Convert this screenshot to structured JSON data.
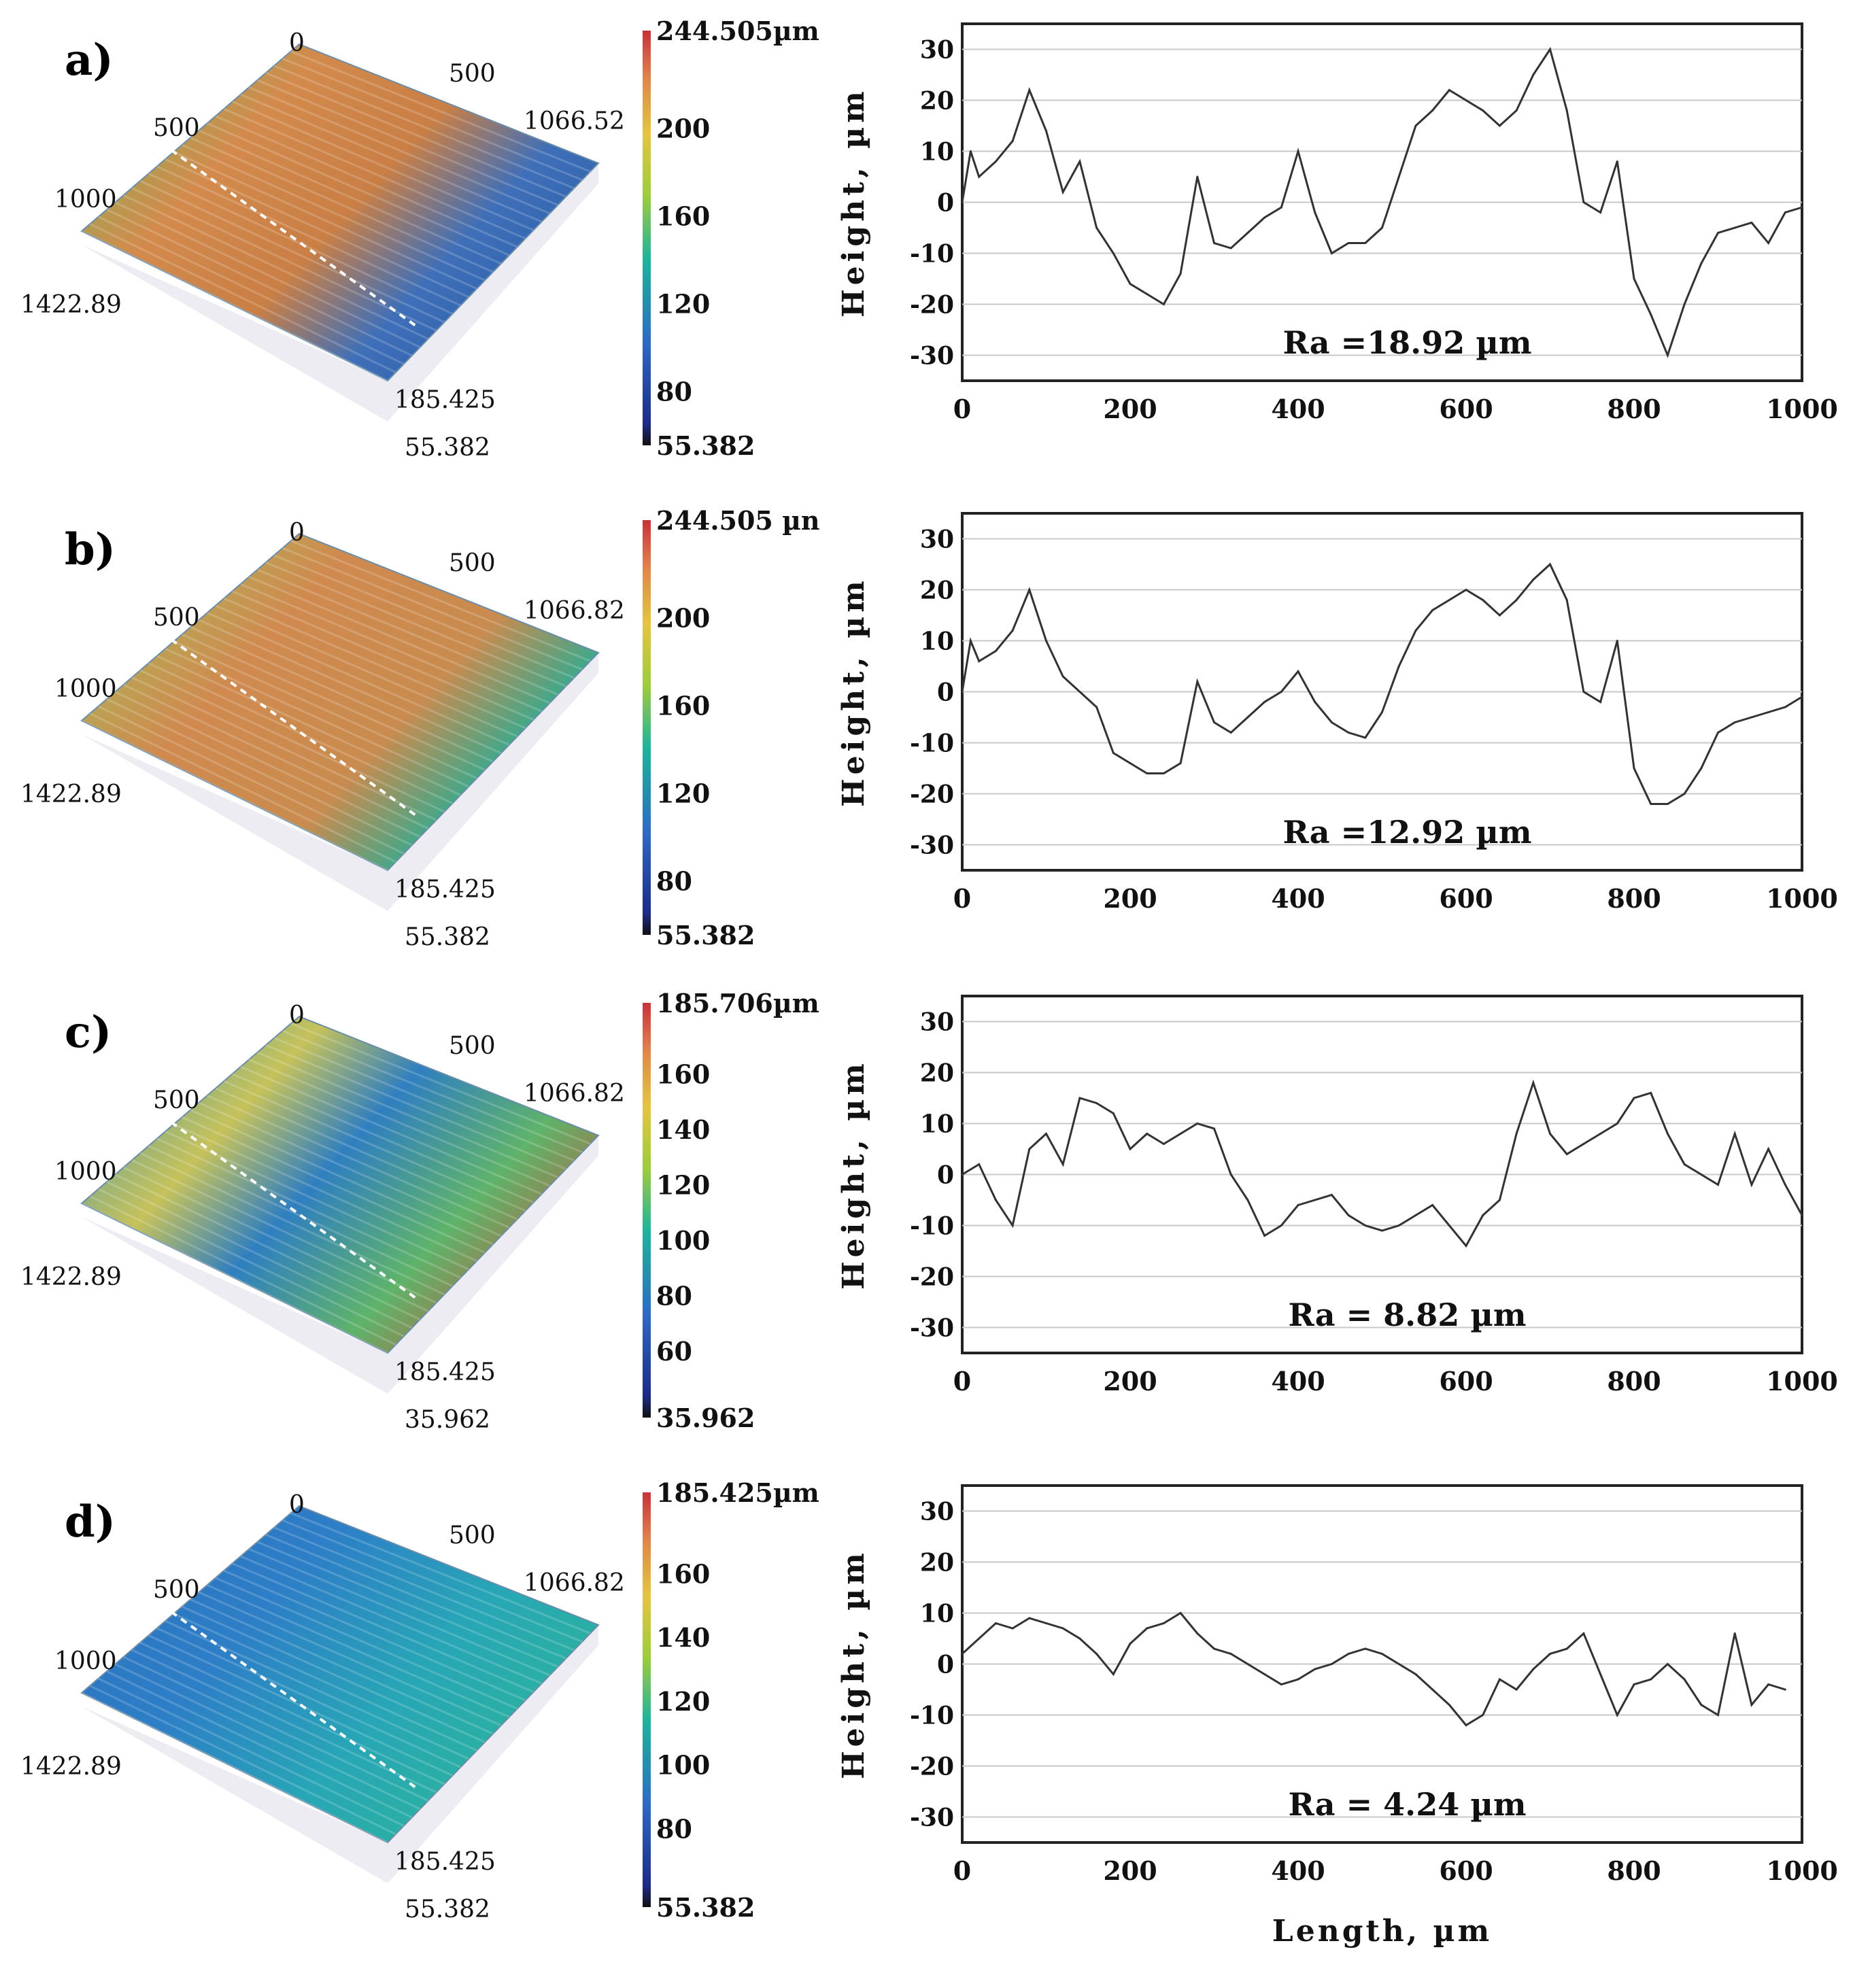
{
  "chart_data": [
    {
      "panel": "a)",
      "type": "line",
      "surface_3d": {
        "axis_labels": [
          "0",
          "500",
          "1066.52",
          "500",
          "1000",
          "1422.89",
          "185.425",
          "55.382"
        ],
        "colorbar": {
          "ticks": [
            "244.505µm",
            "200",
            "160",
            "120",
            "80",
            "55.382"
          ],
          "max": 244.505,
          "min": 55.382
        }
      },
      "profile": {
        "xlabel": "",
        "ylabel": "Height, µm",
        "xlim": [
          0,
          1000
        ],
        "ylim": [
          -35,
          35
        ],
        "xticks": [
          "0",
          "200",
          "400",
          "600",
          "800",
          "1000"
        ],
        "yticks": [
          "30",
          "20",
          "10",
          "0",
          "-10",
          "-20",
          "-30"
        ],
        "annotation": "Ra =18.92 µm",
        "x": [
          0,
          10,
          20,
          40,
          60,
          80,
          100,
          120,
          140,
          160,
          180,
          200,
          220,
          240,
          260,
          280,
          300,
          320,
          340,
          360,
          380,
          400,
          420,
          440,
          460,
          480,
          500,
          520,
          540,
          560,
          580,
          600,
          620,
          640,
          660,
          680,
          700,
          720,
          740,
          760,
          780,
          800,
          820,
          840,
          860,
          880,
          900,
          920,
          940,
          960,
          980,
          1000
        ],
        "y": [
          0,
          10,
          5,
          8,
          12,
          22,
          14,
          2,
          8,
          -5,
          -10,
          -16,
          -18,
          -20,
          -14,
          5,
          -8,
          -9,
          -6,
          -3,
          -1,
          10,
          -2,
          -10,
          -8,
          -8,
          -5,
          5,
          15,
          18,
          22,
          20,
          18,
          15,
          18,
          25,
          30,
          18,
          0,
          -2,
          8,
          -15,
          -22,
          -30,
          -20,
          -12,
          -6,
          -5,
          -4,
          -8,
          -2,
          -1
        ]
      }
    },
    {
      "panel": "b)",
      "type": "line",
      "surface_3d": {
        "axis_labels": [
          "0",
          "500",
          "1066.82",
          "500",
          "1000",
          "1422.89",
          "185.425",
          "55.382"
        ],
        "colorbar": {
          "ticks": [
            "244.505 µn",
            "200",
            "160",
            "120",
            "80",
            "55.382"
          ],
          "max": 244.505,
          "min": 55.382
        }
      },
      "profile": {
        "xlabel": "",
        "ylabel": "Height, µm",
        "xlim": [
          0,
          1000
        ],
        "ylim": [
          -35,
          35
        ],
        "xticks": [
          "0",
          "200",
          "400",
          "600",
          "800",
          "1000"
        ],
        "yticks": [
          "30",
          "20",
          "10",
          "0",
          "-10",
          "-20",
          "-30"
        ],
        "annotation": "Ra =12.92 µm",
        "x": [
          0,
          10,
          20,
          40,
          60,
          80,
          100,
          120,
          140,
          160,
          180,
          200,
          220,
          240,
          260,
          280,
          300,
          320,
          340,
          360,
          380,
          400,
          420,
          440,
          460,
          480,
          500,
          520,
          540,
          560,
          580,
          600,
          620,
          640,
          660,
          680,
          700,
          720,
          740,
          760,
          780,
          800,
          820,
          840,
          860,
          880,
          900,
          920,
          940,
          960,
          980,
          1000
        ],
        "y": [
          0,
          10,
          6,
          8,
          12,
          20,
          10,
          3,
          0,
          -3,
          -12,
          -14,
          -16,
          -16,
          -14,
          2,
          -6,
          -8,
          -5,
          -2,
          0,
          4,
          -2,
          -6,
          -8,
          -9,
          -4,
          5,
          12,
          16,
          18,
          20,
          18,
          15,
          18,
          22,
          25,
          18,
          0,
          -2,
          10,
          -15,
          -22,
          -22,
          -20,
          -15,
          -8,
          -6,
          -5,
          -4,
          -3,
          -1
        ]
      }
    },
    {
      "panel": "c)",
      "type": "line",
      "surface_3d": {
        "axis_labels": [
          "0",
          "500",
          "1066.82",
          "500",
          "1000",
          "1422.89",
          "185.425",
          "35.962"
        ],
        "colorbar": {
          "ticks": [
            "185.706µm",
            "160",
            "140",
            "120",
            "100",
            "80",
            "60",
            "35.962"
          ],
          "max": 185.706,
          "min": 35.962
        }
      },
      "profile": {
        "xlabel": "",
        "ylabel": "Height, µm",
        "xlim": [
          0,
          1000
        ],
        "ylim": [
          -35,
          35
        ],
        "xticks": [
          "0",
          "200",
          "400",
          "600",
          "800",
          "1000"
        ],
        "yticks": [
          "30",
          "20",
          "10",
          "0",
          "-10",
          "-20",
          "-30"
        ],
        "annotation": "Ra = 8.82 µm",
        "x": [
          0,
          20,
          40,
          60,
          80,
          100,
          120,
          140,
          160,
          180,
          200,
          220,
          240,
          260,
          280,
          300,
          320,
          340,
          360,
          380,
          400,
          420,
          440,
          460,
          480,
          500,
          520,
          540,
          560,
          580,
          600,
          620,
          640,
          660,
          680,
          700,
          720,
          740,
          760,
          780,
          800,
          820,
          840,
          860,
          880,
          900,
          920,
          940,
          960,
          980,
          1000
        ],
        "y": [
          0,
          2,
          -5,
          -10,
          5,
          8,
          2,
          15,
          14,
          12,
          5,
          8,
          6,
          8,
          10,
          9,
          0,
          -5,
          -12,
          -10,
          -6,
          -5,
          -4,
          -8,
          -10,
          -11,
          -10,
          -8,
          -6,
          -10,
          -14,
          -8,
          -5,
          8,
          18,
          8,
          4,
          6,
          8,
          10,
          15,
          16,
          8,
          2,
          0,
          -2,
          8,
          -2,
          5,
          -2,
          -8
        ]
      }
    },
    {
      "panel": "d)",
      "type": "line",
      "surface_3d": {
        "axis_labels": [
          "0",
          "500",
          "1066.82",
          "500",
          "1000",
          "1422.89",
          "185.425",
          "55.382"
        ],
        "colorbar": {
          "ticks": [
            "185.425µm",
            "160",
            "140",
            "120",
            "100",
            "80",
            "55.382"
          ],
          "max": 185.425,
          "min": 55.382
        }
      },
      "profile": {
        "xlabel": "Length, µm",
        "ylabel": "Height, µm",
        "xlim": [
          0,
          1000
        ],
        "ylim": [
          -35,
          35
        ],
        "xticks": [
          "0",
          "200",
          "400",
          "600",
          "800",
          "1000"
        ],
        "yticks": [
          "30",
          "20",
          "10",
          "0",
          "-10",
          "-20",
          "-30"
        ],
        "annotation": "Ra = 4.24 µm",
        "x": [
          0,
          20,
          40,
          60,
          80,
          100,
          120,
          140,
          160,
          180,
          200,
          220,
          240,
          260,
          280,
          300,
          320,
          340,
          360,
          380,
          400,
          420,
          440,
          460,
          480,
          500,
          520,
          540,
          560,
          580,
          600,
          620,
          640,
          660,
          680,
          700,
          720,
          740,
          760,
          780,
          800,
          820,
          840,
          860,
          880,
          900,
          920,
          940,
          960,
          980
        ],
        "y": [
          2,
          5,
          8,
          7,
          9,
          8,
          7,
          5,
          2,
          -2,
          4,
          7,
          8,
          10,
          6,
          3,
          2,
          0,
          -2,
          -4,
          -3,
          -1,
          0,
          2,
          3,
          2,
          0,
          -2,
          -5,
          -8,
          -12,
          -10,
          -3,
          -5,
          -1,
          2,
          3,
          6,
          -2,
          -10,
          -4,
          -3,
          0,
          -3,
          -8,
          -10,
          6,
          -8,
          -4,
          -5
        ]
      }
    }
  ]
}
